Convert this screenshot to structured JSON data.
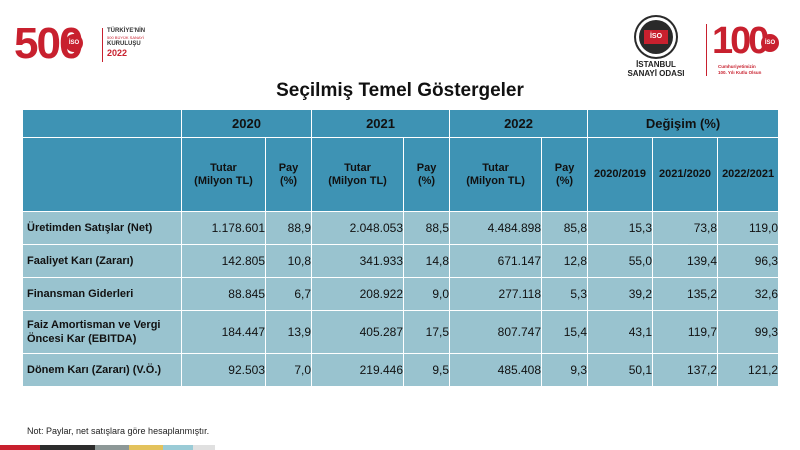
{
  "logo_left": {
    "number": "500",
    "badge": "İSO",
    "line1": "TÜRKİYE'NİN",
    "line2": "500 BÜYÜK SANAYİ",
    "line3": "KURULUŞU",
    "year": "2022"
  },
  "logo_isto": {
    "badge": "İSO",
    "line1": "İSTANBUL",
    "line2": "SANAYİ ODASI"
  },
  "logo_100": {
    "number": "100",
    "badge": "İSO",
    "line1": "Cumhuriyetimizin",
    "line2": "100. Yılı Kutlu Olsun"
  },
  "title": "Seçilmiş Temel Göstergeler",
  "table": {
    "years": [
      "2020",
      "2021",
      "2022"
    ],
    "change_header": "Değişim (%)",
    "amount_header": "Tutar\n(Milyon TL)",
    "share_header": "Pay\n(%)",
    "change_periods": [
      "2020/2019",
      "2021/2020",
      "2022/2021"
    ],
    "rows": [
      {
        "label": "Üretimden Satışlar (Net)",
        "values": [
          "1.178.601",
          "88,9",
          "2.048.053",
          "88,5",
          "4.484.898",
          "85,8",
          "15,3",
          "73,8",
          "119,0"
        ]
      },
      {
        "label": "Faaliyet Karı (Zararı)",
        "values": [
          "142.805",
          "10,8",
          "341.933",
          "14,8",
          "671.147",
          "12,8",
          "55,0",
          "139,4",
          "96,3"
        ]
      },
      {
        "label": "Finansman Giderleri",
        "values": [
          "88.845",
          "6,7",
          "208.922",
          "9,0",
          "277.118",
          "5,3",
          "39,2",
          "135,2",
          "32,6"
        ]
      },
      {
        "label": "Faiz Amortisman  ve Vergi Öncesi Kar (EBITDA)",
        "values": [
          "184.447",
          "13,9",
          "405.287",
          "17,5",
          "807.747",
          "15,4",
          "43,1",
          "119,7",
          "99,3"
        ]
      },
      {
        "label": "Dönem Karı (Zararı) (V.Ö.)",
        "values": [
          "92.503",
          "7,0",
          "219.446",
          "9,5",
          "485.408",
          "9,3",
          "50,1",
          "137,2",
          "121,2"
        ]
      }
    ]
  },
  "note": "Not: Paylar, net satışlara göre hesaplanmıştır.",
  "colors": {
    "header_bg": "#3e93b4",
    "row_bg": "#99c3cf",
    "brand_red": "#c8202e",
    "stripes": [
      "#c8202e",
      "#2d2d2d",
      "#8d9897",
      "#e3c25c",
      "#9acbd6",
      "#e0e0e0"
    ]
  }
}
